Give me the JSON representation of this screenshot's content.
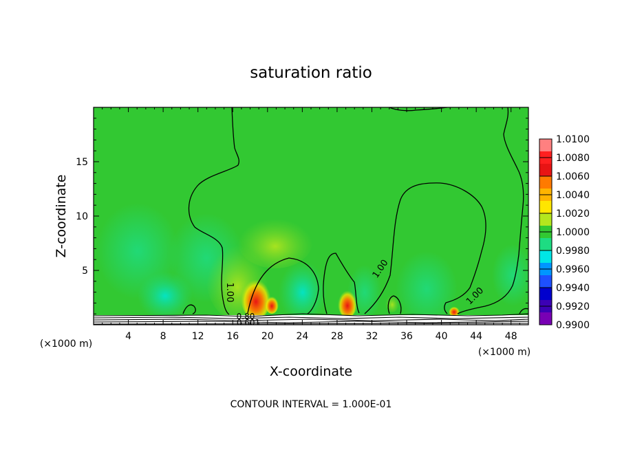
{
  "chart_data": {
    "type": "heatmap",
    "title": "saturation ratio",
    "xlabel": "X-coordinate",
    "ylabel": "Z-coordinate",
    "x_unit_left": "(×1000 m)",
    "x_unit_right": "(×1000 m)",
    "xlim": [
      0,
      50
    ],
    "ylim": [
      0,
      20
    ],
    "xticks": [
      4,
      8,
      12,
      16,
      20,
      24,
      28,
      32,
      36,
      40,
      44,
      48
    ],
    "yticks": [
      5,
      10,
      15
    ],
    "colorbar": {
      "levels": [
        "1.0100",
        "1.0080",
        "1.0060",
        "1.0040",
        "1.0020",
        "1.0000",
        "0.9980",
        "0.9960",
        "0.9940",
        "0.9920",
        "0.9900"
      ],
      "colors": [
        "#ff8080",
        "#ff2020",
        "#e81414",
        "#ff7a00",
        "#ffb400",
        "#ffe600",
        "#b4e61e",
        "#32c832",
        "#1edc82",
        "#00e6e6",
        "#0096ff",
        "#1e50ff",
        "#0000cd",
        "#3c00b4",
        "#7800b4"
      ]
    },
    "contour_labels": [
      "1.00",
      "1.00",
      "1.00",
      "0.80",
      "0.601"
    ],
    "footer": "CONTOUR INTERVAL = 1.000E-01"
  }
}
